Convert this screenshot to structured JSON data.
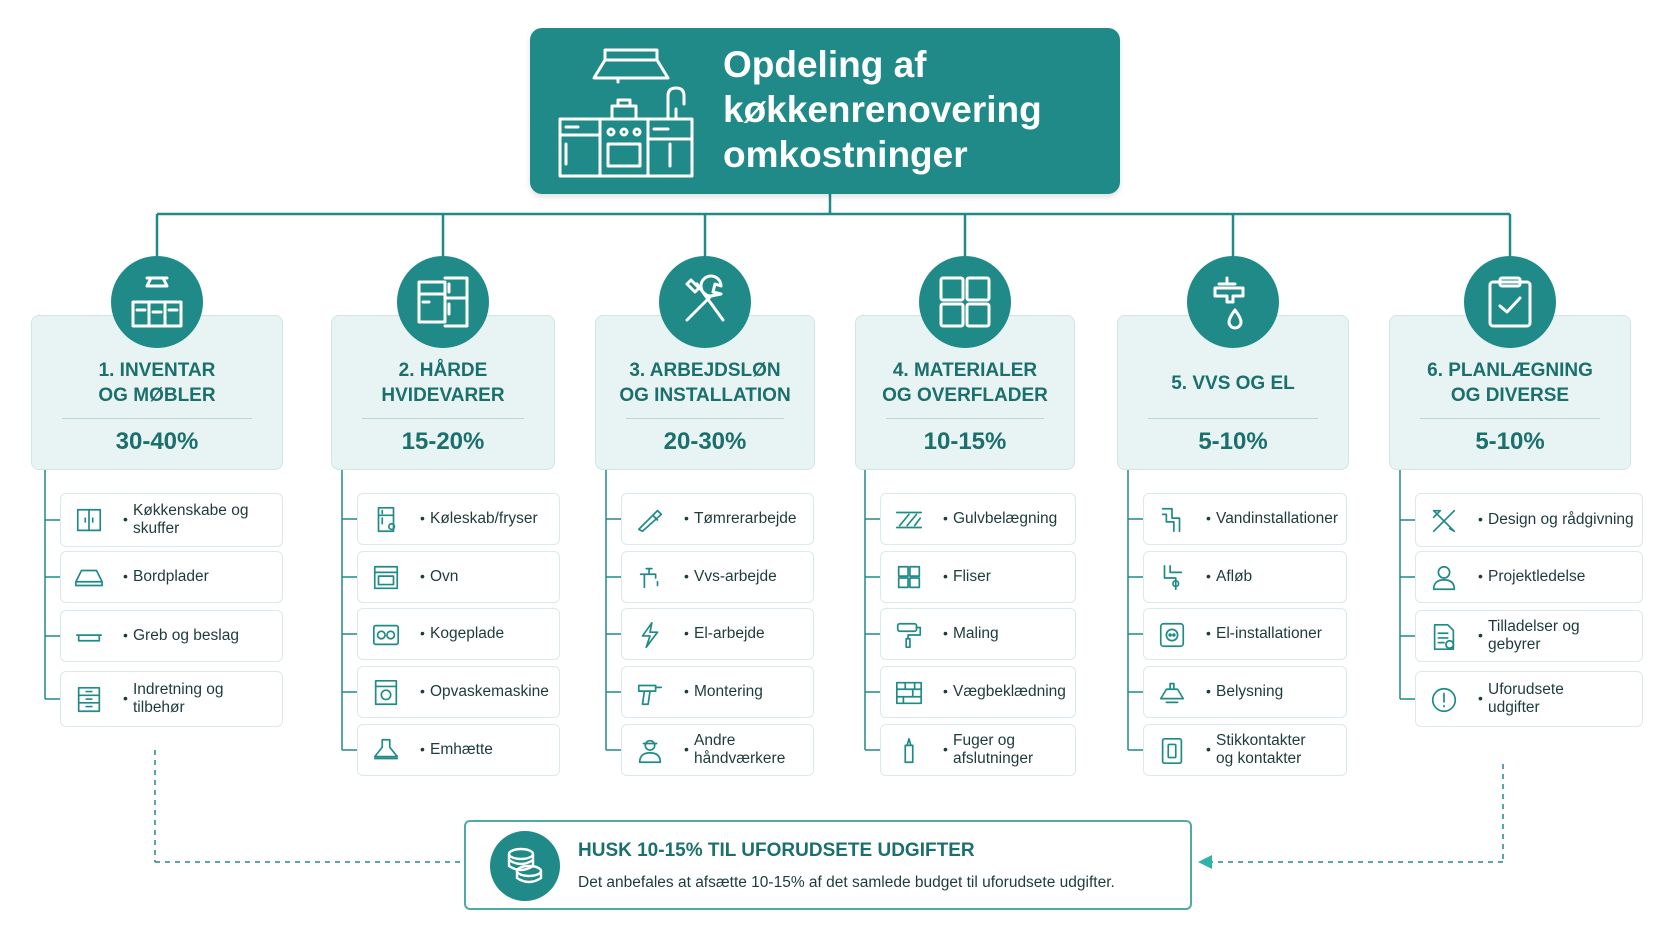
{
  "title": "Opdeling af\nkøkkenrenovering\nomkostninger",
  "colors": {
    "primary": "#1f8a87",
    "card_bg": "#e7f4f3",
    "text_dark": "#1f3a3a",
    "accent_text": "#1b6f6c"
  },
  "categories": [
    {
      "title": "1. INVENTAR\nOG MØBLER",
      "percent": "30-40%",
      "icon": "kitchen-icon",
      "items": [
        {
          "label": "Køkkenskabe og\nskuffer",
          "icon": "cabinet-icon"
        },
        {
          "label": "Bordplader",
          "icon": "countertop-icon"
        },
        {
          "label": "Greb og beslag",
          "icon": "handle-icon"
        },
        {
          "label": "Indretning og\ntilbehør",
          "icon": "drawers-icon"
        }
      ]
    },
    {
      "title": "2. HÅRDE\nHVIDEVARER",
      "percent": "15-20%",
      "icon": "appliances-icon",
      "items": [
        {
          "label": "Køleskab/fryser",
          "icon": "fridge-icon"
        },
        {
          "label": "Ovn",
          "icon": "oven-icon"
        },
        {
          "label": "Kogeplade",
          "icon": "cooktop-icon"
        },
        {
          "label": "Opvaskemaskine",
          "icon": "dishwasher-icon"
        },
        {
          "label": "Emhætte",
          "icon": "hood-icon"
        }
      ]
    },
    {
      "title": "3. ARBEJDSLØN\nOG INSTALLATION",
      "percent": "20-30%",
      "icon": "tools-icon",
      "items": [
        {
          "label": "Tømrerarbejde",
          "icon": "saw-icon"
        },
        {
          "label": "Vvs-arbejde",
          "icon": "faucet-icon"
        },
        {
          "label": "El-arbejde",
          "icon": "lightning-icon"
        },
        {
          "label": "Montering",
          "icon": "drill-icon"
        },
        {
          "label": "Andre håndværkere",
          "icon": "worker-icon"
        }
      ]
    },
    {
      "title": "4. MATERIALER\nOG OVERFLADER",
      "percent": "10-15%",
      "icon": "tiles-icon",
      "items": [
        {
          "label": "Gulvbelægning",
          "icon": "floor-icon"
        },
        {
          "label": "Fliser",
          "icon": "tile-pattern-icon"
        },
        {
          "label": "Maling",
          "icon": "paint-roller-icon"
        },
        {
          "label": "Vægbeklædning",
          "icon": "bricks-icon"
        },
        {
          "label": "Fuger og\nafslutninger",
          "icon": "caulk-icon"
        }
      ]
    },
    {
      "title": "5. VVS OG EL",
      "percent": "5-10%",
      "icon": "tap-drop-icon",
      "items": [
        {
          "label": "Vandinstallationer",
          "icon": "pipe-icon"
        },
        {
          "label": "Afløb",
          "icon": "drain-icon"
        },
        {
          "label": "El-installationer",
          "icon": "outlet-icon"
        },
        {
          "label": "Belysning",
          "icon": "lamp-icon"
        },
        {
          "label": "Stikkontakter\nog kontakter",
          "icon": "switch-icon"
        }
      ]
    },
    {
      "title": "6. PLANLÆGNING\nOG DIVERSE",
      "percent": "5-10%",
      "icon": "clipboard-icon",
      "items": [
        {
          "label": "Design og rådgivning",
          "icon": "design-tools-icon"
        },
        {
          "label": "Projektledelse",
          "icon": "person-icon"
        },
        {
          "label": "Tilladelser og\ngebyrer",
          "icon": "document-icon"
        },
        {
          "label": "Uforudsete\nudgifter",
          "icon": "alert-icon"
        }
      ]
    }
  ],
  "note": {
    "title": "HUSK 10-15% TIL UFORUDSETE UDGIFTER",
    "text": "Det anbefales at afsætte 10-15% af det samlede budget til uforudsete udgifter.",
    "icon": "coins-icon"
  }
}
